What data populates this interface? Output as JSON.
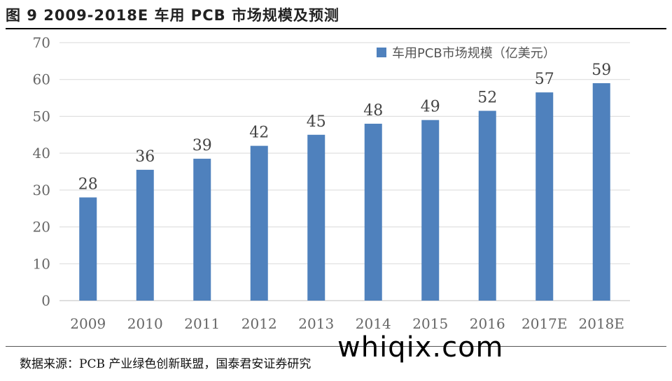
{
  "title": "图 9 2009-2018E 车用 PCB 市场规模及预测",
  "source": "数据来源：PCB 产业绿色创新联盟，国泰君安证券研究",
  "watermark": "whiqix.com",
  "colors": {
    "bar": "#4F81BD",
    "grid": "#D9D9D9",
    "axis": "#BFBFBF"
  },
  "chart_data": {
    "type": "bar",
    "categories": [
      "2009",
      "2010",
      "2011",
      "2012",
      "2013",
      "2014",
      "2015",
      "2016",
      "2017E",
      "2018E"
    ],
    "series": [
      {
        "name": "车用PCB市场规模（亿美元）",
        "values": [
          28,
          35.5,
          38.5,
          42,
          45,
          48,
          49,
          51.5,
          56.5,
          59
        ]
      }
    ],
    "data_labels": [
      "28",
      "36",
      "39",
      "42",
      "45",
      "48",
      "49",
      "52",
      "57",
      "59"
    ],
    "ylim": [
      0,
      70
    ],
    "yticks": [
      0,
      10,
      20,
      30,
      40,
      50,
      60,
      70
    ],
    "grid": true,
    "legend": "top-right"
  }
}
